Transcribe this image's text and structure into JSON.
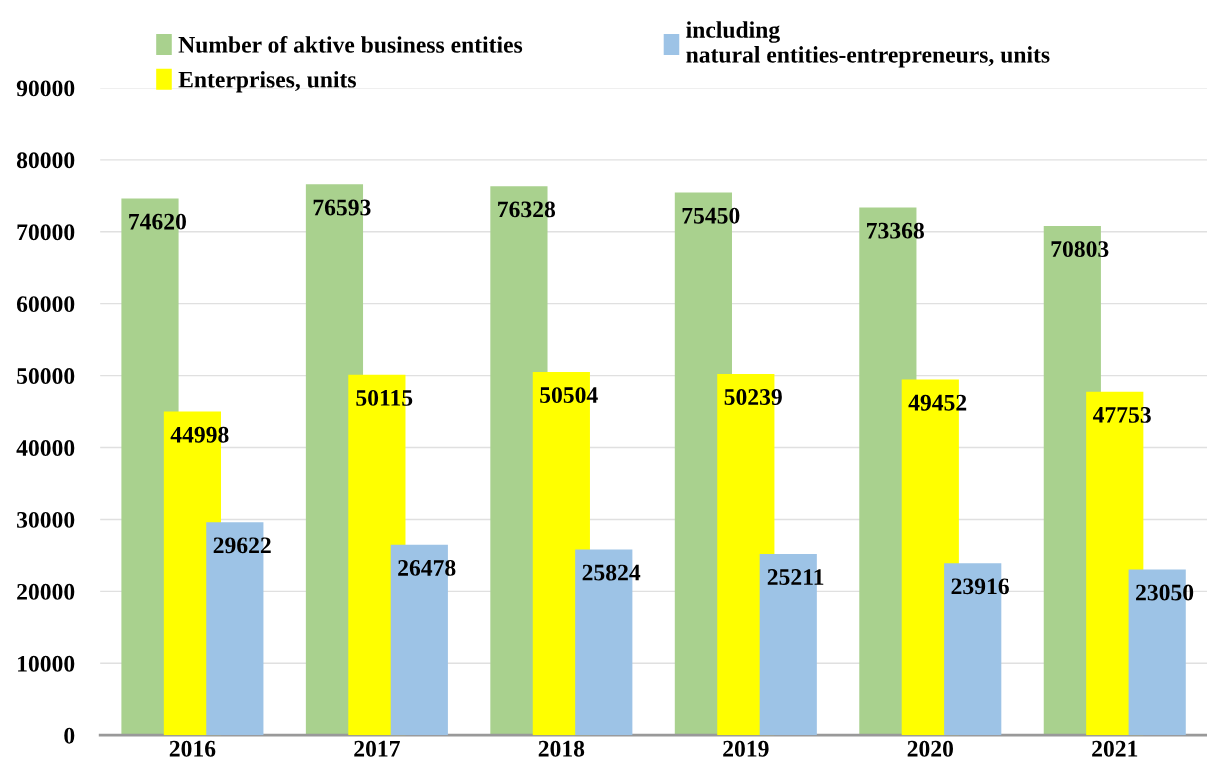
{
  "chart_data": {
    "type": "bar",
    "categories": [
      "2016",
      "2017",
      "2018",
      "2019",
      "2020",
      "2021"
    ],
    "series": [
      {
        "name": "Number of aktive business entities",
        "color": "#a9d18e",
        "values": [
          74620,
          76593,
          76328,
          75450,
          73368,
          70803
        ]
      },
      {
        "name": "Enterprises, units",
        "color": "#ffff00",
        "values": [
          44998,
          50115,
          50504,
          50239,
          49452,
          47753
        ]
      },
      {
        "name": "including\nnatural entities-entrepreneurs, units",
        "color": "#9dc3e6",
        "values": [
          29622,
          26478,
          25824,
          25211,
          23916,
          23050
        ]
      }
    ],
    "ylim": [
      0,
      90000
    ],
    "yticks": [
      0,
      10000,
      20000,
      30000,
      40000,
      50000,
      60000,
      70000,
      80000,
      90000
    ],
    "grid": "y",
    "legend": "top",
    "data_labels": true
  }
}
